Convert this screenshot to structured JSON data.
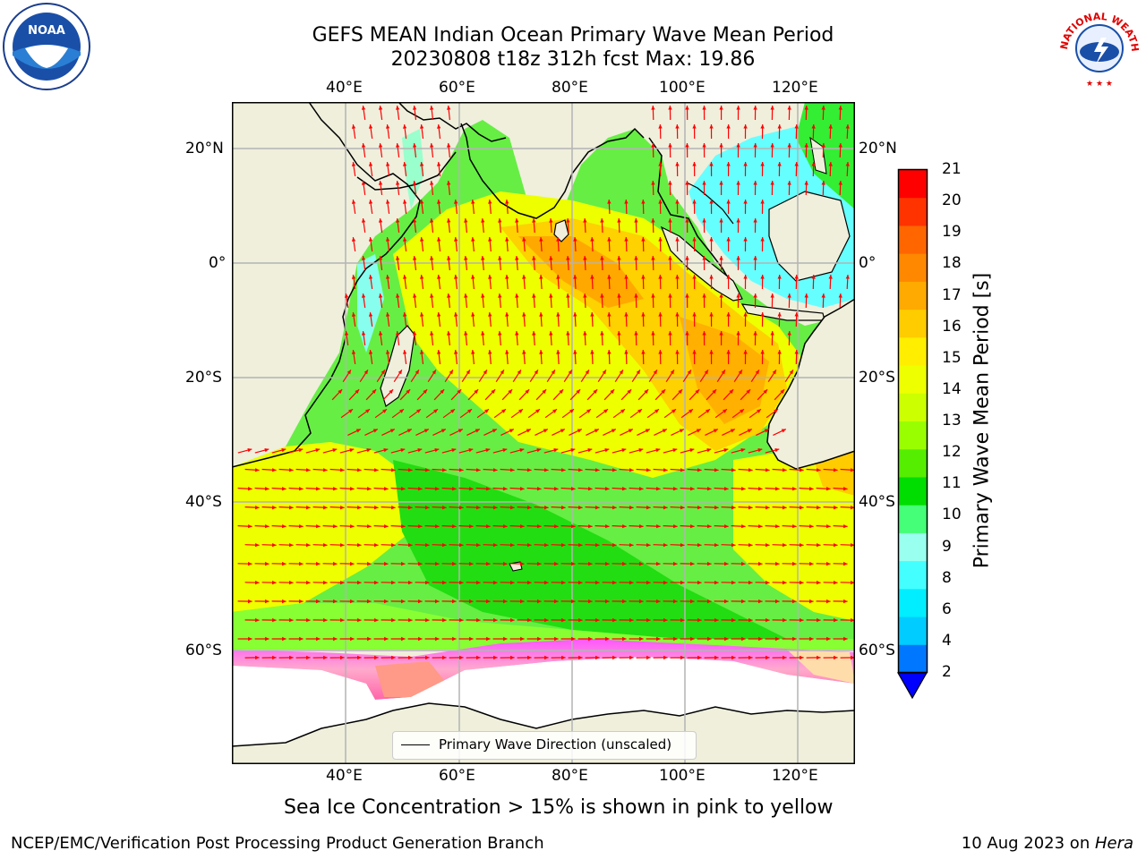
{
  "title": {
    "line1": "GEFS MEAN Indian Ocean Primary Wave Mean Period",
    "line2": "20230808 t18z 312h fcst   Max: 19.86"
  },
  "logos": {
    "left": "NOAA",
    "right": "NATIONAL WEATHER SERVICE"
  },
  "map": {
    "lon_ticks": [
      "40°E",
      "60°E",
      "80°E",
      "100°E",
      "120°E"
    ],
    "lat_ticks": [
      "20°N",
      "0°",
      "20°S",
      "40°S",
      "60°S"
    ],
    "legend_label": "Primary Wave Direction (unscaled)",
    "colors": {
      "land": "#efefdc",
      "ice_free": "#ffffff",
      "vector": "#ff0000",
      "grid": "#b4b4b4"
    }
  },
  "colorbar": {
    "label": "Primary Wave Mean Period [s]",
    "ticks": [
      "21",
      "20",
      "19",
      "18",
      "17",
      "16",
      "15",
      "14",
      "13",
      "12",
      "11",
      "10",
      "9",
      "8",
      "6",
      "4",
      "2"
    ],
    "colors": [
      "#ff0000",
      "#ff3300",
      "#ff6600",
      "#ff8800",
      "#ffaa00",
      "#ffcc00",
      "#ffee00",
      "#eeff00",
      "#ccff00",
      "#99ff00",
      "#55ee00",
      "#00dd00",
      "#44ff77",
      "#99ffee",
      "#44ffff",
      "#00eeff",
      "#00ccff",
      "#0077ff"
    ],
    "extend_color": "#0000ff"
  },
  "caption": "Sea Ice Concentration > 15% is shown in pink to yellow",
  "footer": {
    "left": "NCEP/EMC/Verification Post Processing Product Generation Branch",
    "date": "10 Aug 2023 on ",
    "machine": "Hera"
  }
}
